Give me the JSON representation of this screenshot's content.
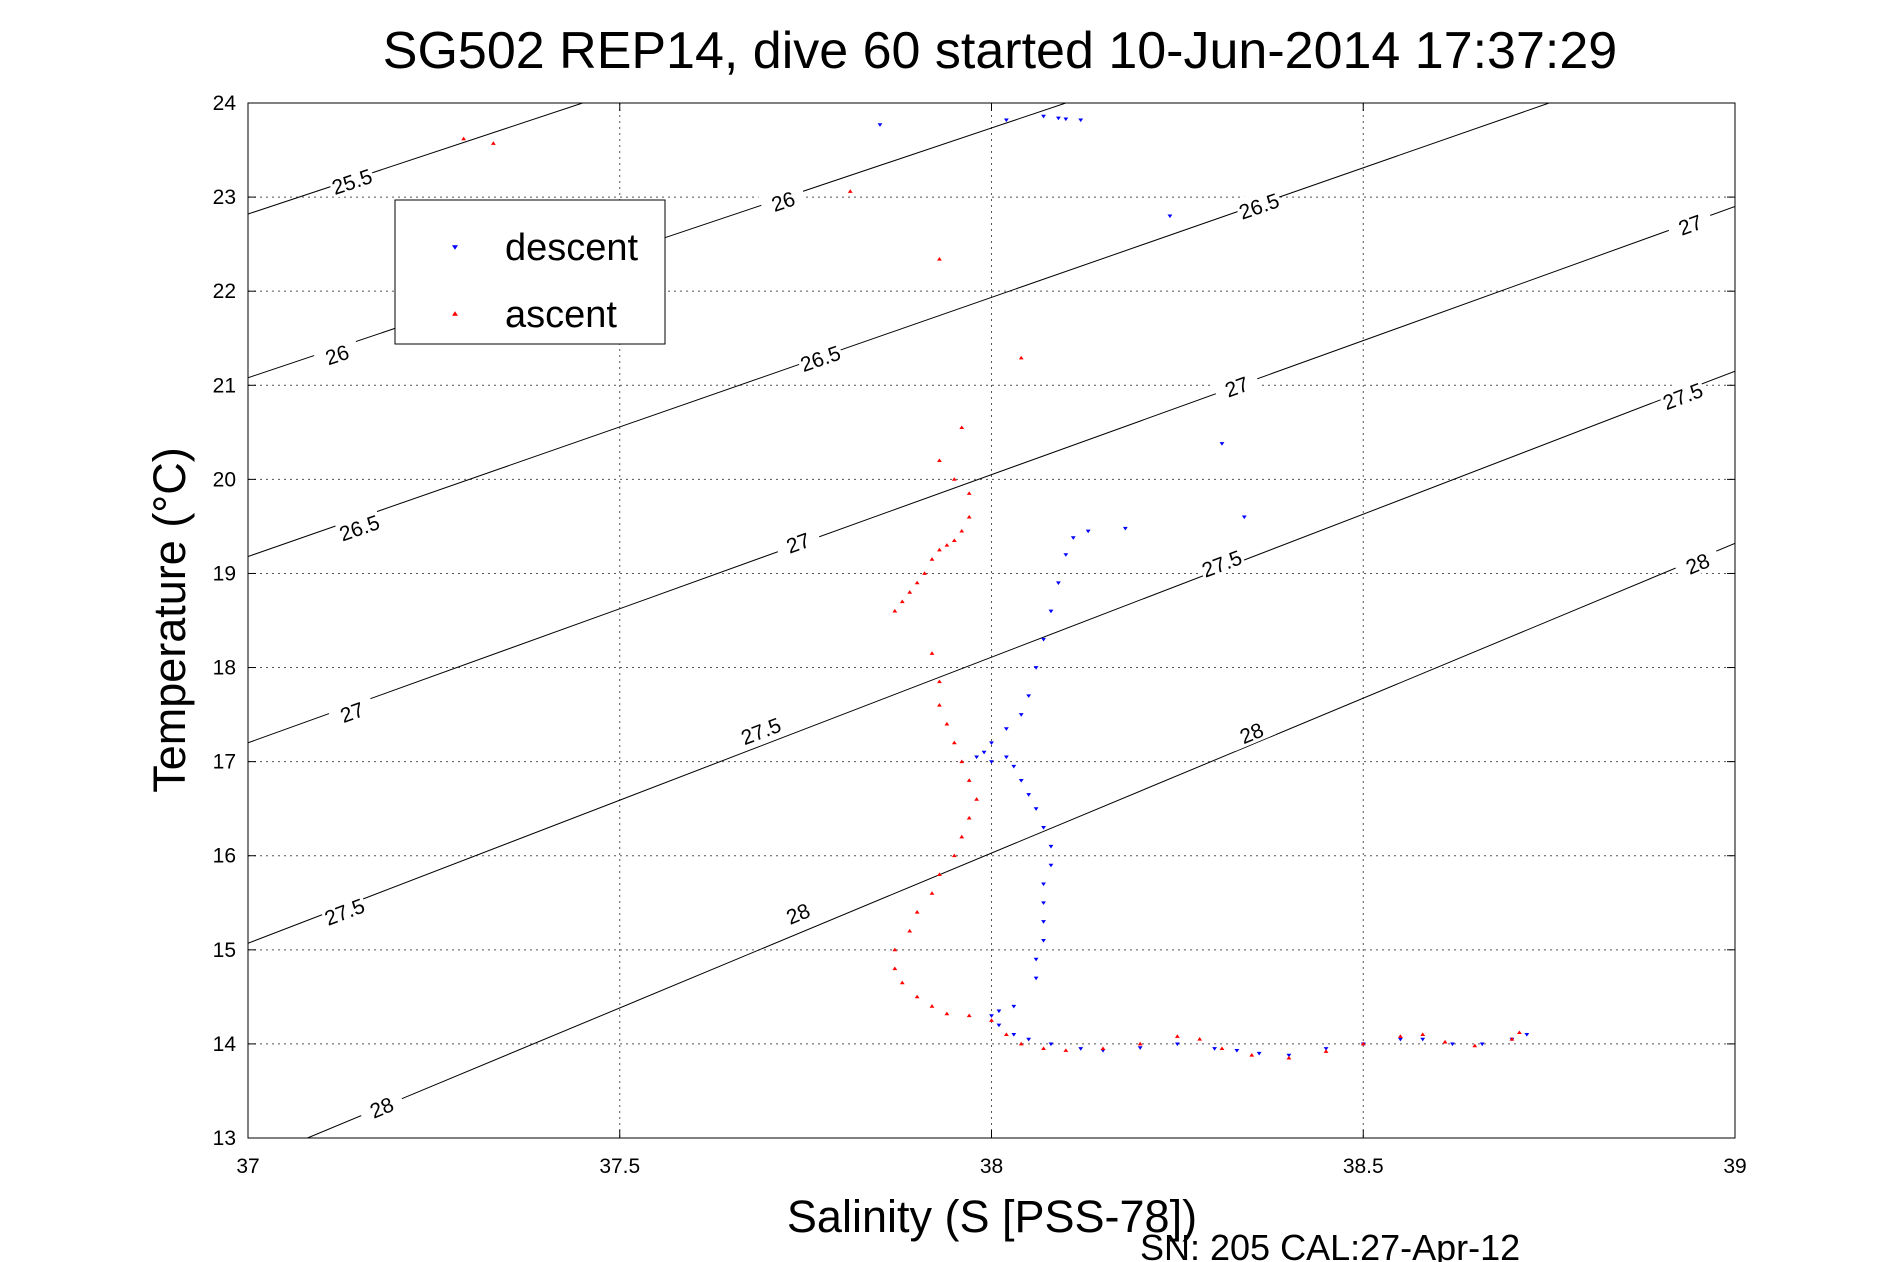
{
  "chart_data": {
    "type": "scatter",
    "title": "SG502 REP14, dive 60 started 10-Jun-2014 17:37:29",
    "xlabel": "Salinity (S [PSS-78])",
    "ylabel": "Temperature (°C)",
    "xlim": [
      37,
      39
    ],
    "ylim": [
      13,
      24
    ],
    "xticks": [
      "37",
      "37.5",
      "38",
      "38.5",
      "39"
    ],
    "yticks": [
      "13",
      "14",
      "15",
      "16",
      "17",
      "18",
      "19",
      "20",
      "21",
      "22",
      "23",
      "24"
    ],
    "grid": true,
    "legend_position": "upper-left",
    "footer": "SN: 205  CAL:27-Apr-12",
    "density_contours": [
      {
        "sigma": "25.5",
        "points": [
          [
            37.0,
            22.82
          ],
          [
            37.45,
            24.0
          ]
        ],
        "labels": [
          [
            37.14,
            23.16
          ]
        ]
      },
      {
        "sigma": "26",
        "points": [
          [
            37.0,
            21.08
          ],
          [
            38.1,
            24.0
          ]
        ],
        "labels": [
          [
            37.12,
            21.32
          ],
          [
            37.72,
            22.95
          ]
        ]
      },
      {
        "sigma": "26.5",
        "points": [
          [
            37.0,
            19.18
          ],
          [
            38.75,
            24.0
          ]
        ],
        "labels": [
          [
            37.15,
            19.48
          ],
          [
            37.77,
            21.28
          ],
          [
            38.36,
            22.9
          ]
        ]
      },
      {
        "sigma": "27",
        "points": [
          [
            37.0,
            17.2
          ],
          [
            39.0,
            22.9
          ]
        ],
        "labels": [
          [
            37.14,
            17.52
          ],
          [
            37.74,
            19.32
          ],
          [
            38.33,
            20.98
          ],
          [
            38.94,
            22.7
          ]
        ]
      },
      {
        "sigma": "27.5",
        "points": [
          [
            37.0,
            15.07
          ],
          [
            39.0,
            21.15
          ]
        ],
        "labels": [
          [
            37.13,
            15.4
          ],
          [
            37.69,
            17.32
          ],
          [
            38.31,
            19.1
          ],
          [
            38.93,
            20.88
          ]
        ]
      },
      {
        "sigma": "28",
        "points": [
          [
            37.08,
            13.0
          ],
          [
            39.0,
            19.32
          ]
        ],
        "labels": [
          [
            37.18,
            13.32
          ],
          [
            37.74,
            15.38
          ],
          [
            38.35,
            17.3
          ],
          [
            38.95,
            19.1
          ]
        ]
      }
    ],
    "series": [
      {
        "name": "descent",
        "color": "#0000ff",
        "marker": "triangle-down",
        "points": [
          [
            37.85,
            23.77
          ],
          [
            38.02,
            23.82
          ],
          [
            38.07,
            23.86
          ],
          [
            38.09,
            23.84
          ],
          [
            38.1,
            23.83
          ],
          [
            38.12,
            23.82
          ],
          [
            38.24,
            22.8
          ],
          [
            38.31,
            20.38
          ],
          [
            38.34,
            19.6
          ],
          [
            38.18,
            19.48
          ],
          [
            38.13,
            19.45
          ],
          [
            38.11,
            19.38
          ],
          [
            38.1,
            19.2
          ],
          [
            38.09,
            18.9
          ],
          [
            38.08,
            18.6
          ],
          [
            38.07,
            18.3
          ],
          [
            38.06,
            18.0
          ],
          [
            38.05,
            17.7
          ],
          [
            38.04,
            17.5
          ],
          [
            38.02,
            17.35
          ],
          [
            38.0,
            17.2
          ],
          [
            37.99,
            17.1
          ],
          [
            37.98,
            17.05
          ],
          [
            38.0,
            17.0
          ],
          [
            38.02,
            17.05
          ],
          [
            38.03,
            16.95
          ],
          [
            38.04,
            16.8
          ],
          [
            38.05,
            16.65
          ],
          [
            38.06,
            16.5
          ],
          [
            38.07,
            16.3
          ],
          [
            38.08,
            16.1
          ],
          [
            38.08,
            15.9
          ],
          [
            38.07,
            15.7
          ],
          [
            38.07,
            15.5
          ],
          [
            38.07,
            15.3
          ],
          [
            38.07,
            15.1
          ],
          [
            38.06,
            14.9
          ],
          [
            38.06,
            14.7
          ],
          [
            38.03,
            14.4
          ],
          [
            38.01,
            14.35
          ],
          [
            38.0,
            14.3
          ],
          [
            38.01,
            14.2
          ],
          [
            38.03,
            14.1
          ],
          [
            38.05,
            14.05
          ],
          [
            38.08,
            14.0
          ],
          [
            38.12,
            13.95
          ],
          [
            38.15,
            13.93
          ],
          [
            38.2,
            13.96
          ],
          [
            38.25,
            14.0
          ],
          [
            38.3,
            13.95
          ],
          [
            38.33,
            13.93
          ],
          [
            38.36,
            13.9
          ],
          [
            38.4,
            13.88
          ],
          [
            38.45,
            13.95
          ],
          [
            38.5,
            14.0
          ],
          [
            38.55,
            14.05
          ],
          [
            38.58,
            14.05
          ],
          [
            38.62,
            14.0
          ],
          [
            38.66,
            14.0
          ],
          [
            38.7,
            14.05
          ],
          [
            38.72,
            14.1
          ]
        ]
      },
      {
        "name": "ascent",
        "color": "#ff0000",
        "marker": "triangle-up",
        "points": [
          [
            37.29,
            23.62
          ],
          [
            37.33,
            23.57
          ],
          [
            37.81,
            23.06
          ],
          [
            37.93,
            22.34
          ],
          [
            38.04,
            21.29
          ],
          [
            37.96,
            20.55
          ],
          [
            37.93,
            20.2
          ],
          [
            37.95,
            20.0
          ],
          [
            37.97,
            19.85
          ],
          [
            37.97,
            19.6
          ],
          [
            37.96,
            19.45
          ],
          [
            37.95,
            19.35
          ],
          [
            37.94,
            19.3
          ],
          [
            37.93,
            19.25
          ],
          [
            37.92,
            19.15
          ],
          [
            37.91,
            19.0
          ],
          [
            37.9,
            18.9
          ],
          [
            37.89,
            18.8
          ],
          [
            37.88,
            18.7
          ],
          [
            37.87,
            18.6
          ],
          [
            37.92,
            18.15
          ],
          [
            37.93,
            17.85
          ],
          [
            37.93,
            17.6
          ],
          [
            37.94,
            17.4
          ],
          [
            37.95,
            17.2
          ],
          [
            37.96,
            17.0
          ],
          [
            37.97,
            16.8
          ],
          [
            37.98,
            16.6
          ],
          [
            37.97,
            16.4
          ],
          [
            37.96,
            16.2
          ],
          [
            37.95,
            16.0
          ],
          [
            37.93,
            15.8
          ],
          [
            37.92,
            15.6
          ],
          [
            37.9,
            15.4
          ],
          [
            37.89,
            15.2
          ],
          [
            37.87,
            15.0
          ],
          [
            37.87,
            14.8
          ],
          [
            37.88,
            14.65
          ],
          [
            37.9,
            14.5
          ],
          [
            37.92,
            14.4
          ],
          [
            37.94,
            14.32
          ],
          [
            37.97,
            14.3
          ],
          [
            38.0,
            14.25
          ],
          [
            38.02,
            14.1
          ],
          [
            38.04,
            14.0
          ],
          [
            38.07,
            13.95
          ],
          [
            38.1,
            13.93
          ],
          [
            38.15,
            13.95
          ],
          [
            38.2,
            14.0
          ],
          [
            38.25,
            14.08
          ],
          [
            38.28,
            14.05
          ],
          [
            38.31,
            13.95
          ],
          [
            38.35,
            13.88
          ],
          [
            38.4,
            13.85
          ],
          [
            38.45,
            13.92
          ],
          [
            38.5,
            14.0
          ],
          [
            38.55,
            14.08
          ],
          [
            38.58,
            14.1
          ],
          [
            38.61,
            14.02
          ],
          [
            38.65,
            13.98
          ],
          [
            38.7,
            14.05
          ],
          [
            38.71,
            14.12
          ]
        ]
      }
    ]
  }
}
